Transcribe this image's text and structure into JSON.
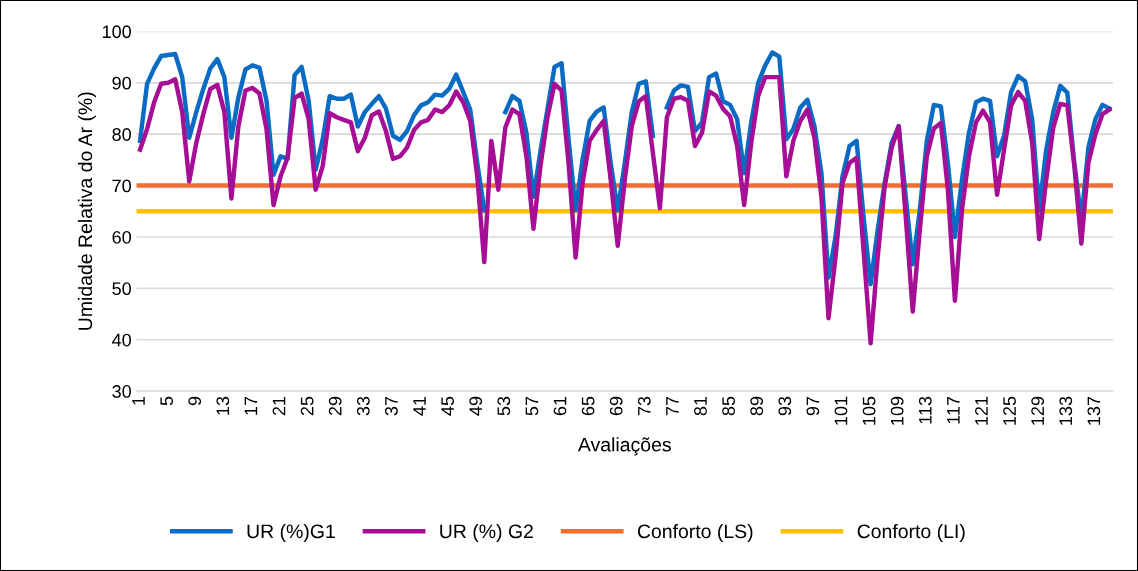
{
  "chart_data": {
    "type": "line",
    "xlabel": "Avaliações",
    "ylabel": "Umidade Relativa do Ar (%)",
    "categories": [
      "1",
      null,
      null,
      null,
      "5",
      null,
      null,
      null,
      "9",
      null,
      null,
      null,
      "13",
      null,
      null,
      null,
      "17",
      null,
      null,
      null,
      "21",
      null,
      null,
      null,
      "25",
      null,
      null,
      null,
      "29",
      null,
      null,
      null,
      "33",
      null,
      null,
      null,
      "37",
      null,
      null,
      null,
      "41",
      null,
      null,
      null,
      "45",
      null,
      null,
      null,
      "49",
      null,
      null,
      null,
      "53",
      null,
      null,
      null,
      "57",
      null,
      null,
      null,
      "61",
      null,
      null,
      null,
      "65",
      null,
      null,
      null,
      "69",
      null,
      null,
      null,
      "73",
      null,
      null,
      null,
      "77",
      null,
      null,
      null,
      "81",
      null,
      null,
      null,
      "85",
      null,
      null,
      null,
      "89",
      null,
      null,
      null,
      "93",
      null,
      null,
      null,
      "97",
      null,
      null,
      null,
      "101",
      null,
      null,
      null,
      "105",
      null,
      null,
      null,
      "109",
      null,
      null,
      null,
      "113",
      null,
      null,
      null,
      "117",
      null,
      null,
      null,
      "121",
      null,
      null,
      null,
      "125",
      null,
      null,
      null,
      "129",
      null,
      null,
      null,
      "133",
      null,
      null,
      null,
      "137",
      null,
      null
    ],
    "series": [
      {
        "name": "UR (%)G1",
        "color": "#0a6bc4",
        "values": [
          78.7,
          89.8,
          92.8,
          95.2,
          95.4,
          95.6,
          91.1,
          79.3,
          84.3,
          88.8,
          92.8,
          94.6,
          91.1,
          79.3,
          87.2,
          92.6,
          93.4,
          92.9,
          86.5,
          72.1,
          75.7,
          75.2,
          91.5,
          93.1,
          86.5,
          73.1,
          79,
          87.4,
          86.9,
          86.9,
          87.7,
          81.5,
          84.3,
          85.9,
          87.4,
          85,
          79.7,
          78.9,
          80.6,
          83.7,
          85.6,
          86.2,
          87.7,
          87.5,
          88.8,
          91.6,
          88.2,
          84.8,
          74.4,
          65.2,
          null,
          null,
          84.3,
          87.4,
          86.5,
          80.3,
          67.8,
          76.7,
          84.9,
          93.1,
          93.8,
          79,
          65.2,
          75.1,
          82.6,
          84.4,
          85.2,
          74.4,
          65.2,
          74.4,
          84.3,
          89.8,
          90.3,
          79.7,
          null,
          85.2,
          88.5,
          89.5,
          89.2,
          80.6,
          82.3,
          91.1,
          91.8,
          86.4,
          85.7,
          82.9,
          72.4,
          82.3,
          90,
          93.4,
          95.9,
          95.1,
          79,
          81,
          85.2,
          86.7,
          81.6,
          72.4,
          52.1,
          60,
          71.8,
          77.7,
          78.7,
          63.9,
          50.8,
          61.3,
          70.5,
          78.3,
          81.6,
          67.8,
          54.7,
          65.2,
          78.7,
          85.7,
          85.4,
          74.4,
          60,
          71.1,
          80.3,
          86.2,
          86.9,
          86.5,
          75.7,
          79.7,
          88.2,
          91.3,
          90.3,
          82.9,
          65.2,
          77,
          84.3,
          89.4,
          88.1,
          74.4,
          63.3,
          77.4,
          82.9,
          85.7,
          85
        ]
      },
      {
        "name": "UR (%) G2",
        "color": "#a50e95",
        "values": [
          77,
          81,
          86.2,
          89.8,
          90,
          90.7,
          84.3,
          70.8,
          78.3,
          83.9,
          88.8,
          89.6,
          84.3,
          67.5,
          81.6,
          88.5,
          89,
          87.9,
          81,
          66.2,
          71.8,
          75.4,
          87,
          87.9,
          82.9,
          69.2,
          73.8,
          84.1,
          83.3,
          82.8,
          82.3,
          76.7,
          79.3,
          83.7,
          84.4,
          80.6,
          75.2,
          75.7,
          77.4,
          80.8,
          82.3,
          82.8,
          84.8,
          84.3,
          85.6,
          88.3,
          86.2,
          82.6,
          71.8,
          55.1,
          78.7,
          69.2,
          81.3,
          84.8,
          83.9,
          75.7,
          61.6,
          73.8,
          83.3,
          89.8,
          88.5,
          74.4,
          56,
          70.5,
          78.7,
          80.8,
          82.6,
          71.1,
          58.3,
          71.1,
          81.6,
          86.4,
          87.4,
          76.4,
          65.6,
          83.3,
          86.9,
          87.2,
          86.5,
          77.7,
          80.3,
          88.3,
          87.5,
          84.9,
          83.5,
          77.7,
          66.2,
          78.3,
          87.5,
          91.1,
          91.1,
          91.1,
          71.8,
          78.7,
          82.6,
          84.8,
          79.3,
          67.8,
          44.2,
          56,
          70.5,
          74.4,
          75.4,
          57.3,
          39.3,
          56,
          69.8,
          77.4,
          81.5,
          63.9,
          45.5,
          61.3,
          75.7,
          81.1,
          82.2,
          69.2,
          47.6,
          65.2,
          75.7,
          82.3,
          84.6,
          82.3,
          68.2,
          77,
          85.6,
          88.2,
          86.5,
          78.3,
          59.6,
          71.1,
          81.3,
          85.9,
          85.6,
          73.8,
          58.7,
          74.4,
          80,
          83.9,
          84.8
        ]
      }
    ],
    "ref_lines": [
      {
        "axis": "y",
        "value": 70,
        "label": "Conforto (LS)",
        "color": "#f26d32"
      },
      {
        "axis": "y",
        "value": 65,
        "label": "Conforto (LI)",
        "color": "#ffc000"
      }
    ],
    "ylim": [
      30,
      100
    ],
    "yticks": [
      30,
      40,
      50,
      60,
      70,
      80,
      90,
      100
    ],
    "grid": "y",
    "legend": "bottom"
  }
}
